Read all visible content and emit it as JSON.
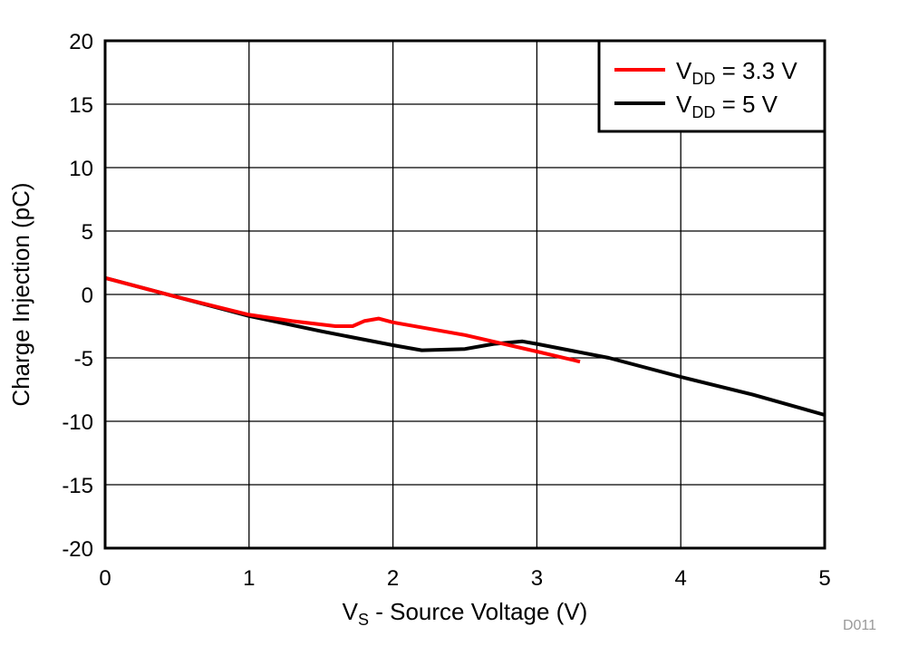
{
  "chart_data": {
    "type": "line",
    "title": "",
    "xlabel_main": "V",
    "xlabel_sub": "S",
    "xlabel_rest": " - Source Voltage (V)",
    "ylabel": "Charge Injection (pC)",
    "xlim": [
      0,
      5
    ],
    "ylim": [
      -20,
      20
    ],
    "xticks": [
      "0",
      "1",
      "2",
      "3",
      "4",
      "5"
    ],
    "yticks": [
      "-20",
      "-15",
      "-10",
      "-5",
      "0",
      "5",
      "10",
      "15",
      "20"
    ],
    "grid": true,
    "legend_position": "top-right",
    "footnote": "D011",
    "series": [
      {
        "name_main": "V",
        "name_sub": "DD",
        "name_rest": " = 3.3 V",
        "color": "#ff0000",
        "x": [
          0,
          0.5,
          1.0,
          1.3,
          1.6,
          1.72,
          1.8,
          1.9,
          2.0,
          2.5,
          3.0,
          3.3
        ],
        "y": [
          1.3,
          -0.2,
          -1.6,
          -2.1,
          -2.5,
          -2.5,
          -2.1,
          -1.9,
          -2.2,
          -3.2,
          -4.5,
          -5.3
        ]
      },
      {
        "name_main": "V",
        "name_sub": "DD",
        "name_rest": " = 5 V",
        "color": "#000000",
        "x": [
          0,
          0.5,
          1.0,
          1.5,
          2.0,
          2.2,
          2.5,
          2.7,
          2.9,
          3.0,
          3.5,
          4.0,
          4.5,
          5.0
        ],
        "y": [
          1.3,
          -0.2,
          -1.7,
          -2.9,
          -4.0,
          -4.4,
          -4.3,
          -3.9,
          -3.7,
          -3.9,
          -5.0,
          -6.5,
          -7.9,
          -9.5
        ]
      }
    ]
  }
}
